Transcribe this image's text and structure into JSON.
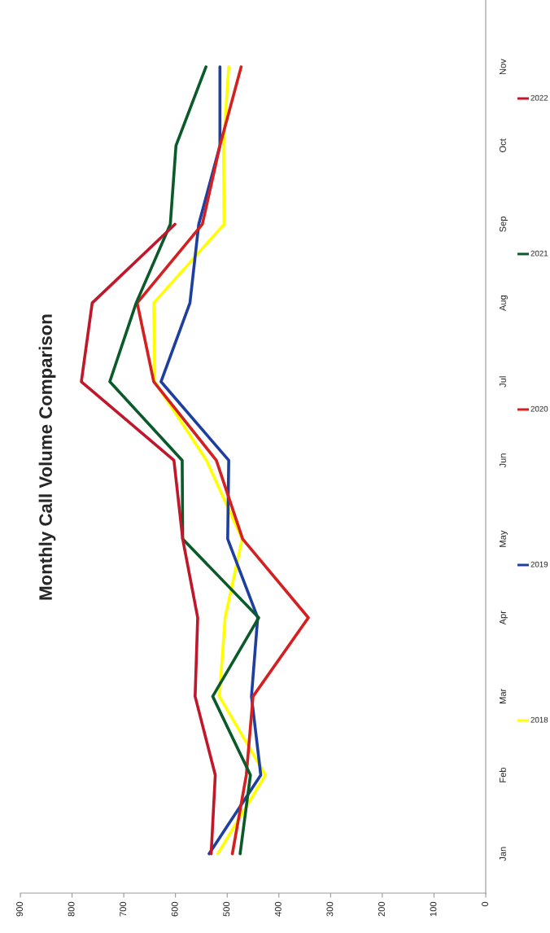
{
  "chart_data": {
    "type": "line",
    "orientation": "horizontal",
    "title": "Monthly Call Volume Comparison",
    "categories": [
      "Nov",
      "Oct",
      "Sep",
      "Aug",
      "Jul",
      "Jun",
      "May",
      "Apr",
      "Mar",
      "Feb",
      "Jan"
    ],
    "series": [
      {
        "name": "2018",
        "color": "#ffff00",
        "values": [
          497,
          507,
          506,
          642,
          640,
          540,
          471,
          504,
          515,
          426,
          518
        ]
      },
      {
        "name": "2019",
        "color": "#1f3fa0",
        "values": [
          514,
          514,
          555,
          572,
          628,
          497,
          499,
          441,
          453,
          435,
          535
        ]
      },
      {
        "name": "2020",
        "color": "#d42020",
        "values": [
          473,
          514,
          548,
          674,
          642,
          521,
          470,
          343,
          450,
          463,
          490
        ]
      },
      {
        "name": "2021",
        "color": "#0a5a2a",
        "values": [
          541,
          599,
          610,
          676,
          727,
          587,
          586,
          439,
          528,
          455,
          475
        ]
      },
      {
        "name": "2022",
        "color": "#c0182a",
        "values": [
          null,
          null,
          601,
          761,
          782,
          603,
          586,
          557,
          562,
          523,
          531
        ]
      }
    ],
    "xlim": [
      900,
      0
    ],
    "xticks": [
      900,
      800,
      700,
      600,
      500,
      400,
      300,
      200,
      100,
      0
    ],
    "grid": false,
    "legend": "right",
    "marker": "none",
    "line_style": "solid"
  }
}
